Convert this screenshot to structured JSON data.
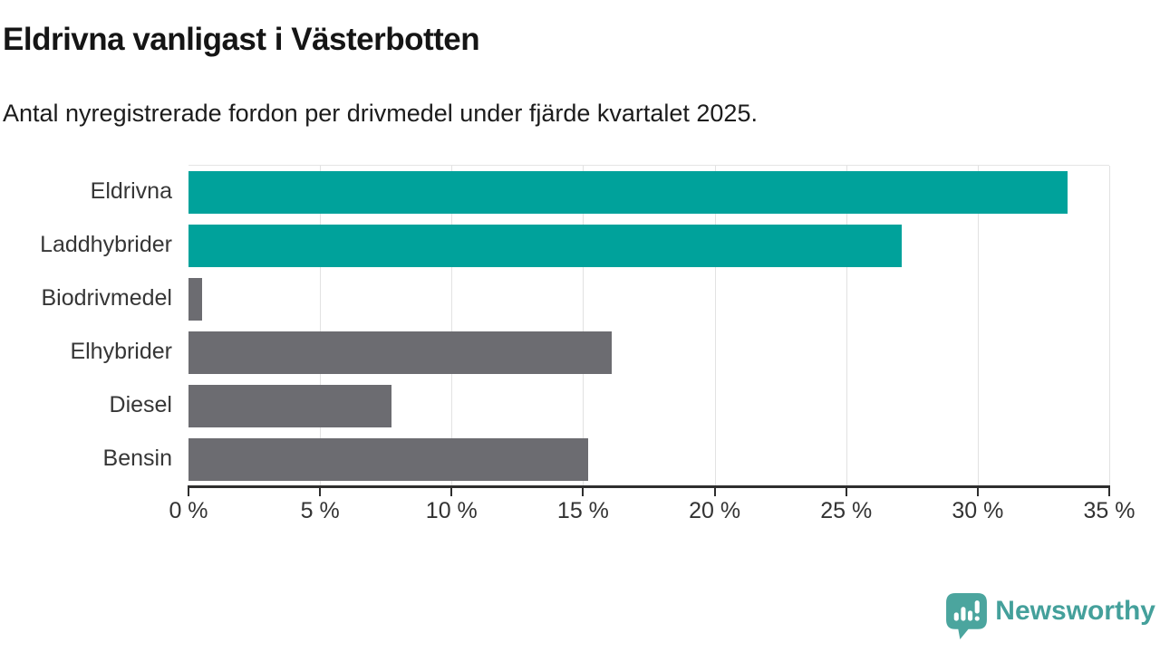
{
  "header": {
    "title": "Eldrivna vanligast i Västerbotten",
    "subtitle": "Antal nyregistrerade fordon per drivmedel under fjärde kvartalet 2025."
  },
  "chart_data": {
    "type": "bar",
    "orientation": "horizontal",
    "title": "Eldrivna vanligast i Västerbotten",
    "subtitle": "Antal nyregistrerade fordon per drivmedel under fjärde kvartalet 2025.",
    "categories": [
      "Eldrivna",
      "Laddhybrider",
      "Biodrivmedel",
      "Elhybrider",
      "Diesel",
      "Bensin"
    ],
    "values": [
      33.4,
      27.1,
      0.5,
      16.1,
      7.7,
      15.2
    ],
    "unit": "%",
    "xlabel": "",
    "ylabel": "",
    "xlim": [
      0,
      35
    ],
    "x_ticks": [
      0,
      5,
      10,
      15,
      20,
      25,
      30,
      35
    ],
    "x_tick_labels": [
      "0 %",
      "5 %",
      "10 %",
      "15 %",
      "20 %",
      "25 %",
      "30 %",
      "35 %"
    ],
    "grid": "vertical-gridlines-on",
    "legend": "none",
    "bar_colors": [
      "#00a29b",
      "#00a29b",
      "#6c6c71",
      "#6c6c71",
      "#6c6c71",
      "#6c6c71"
    ],
    "highlight_color": "#00a29b",
    "default_color": "#6c6c71"
  },
  "colors": {
    "teal_bar": "#00a29b",
    "gray_bar": "#6c6c71",
    "gridline": "#e2e2e2",
    "axis": "#2e2e2e",
    "brand_teal": "#44a09b"
  },
  "footer": {
    "brand": "Newsworthy",
    "logo_icon": "speech-bubble-bar-chart-exclamation-icon"
  }
}
